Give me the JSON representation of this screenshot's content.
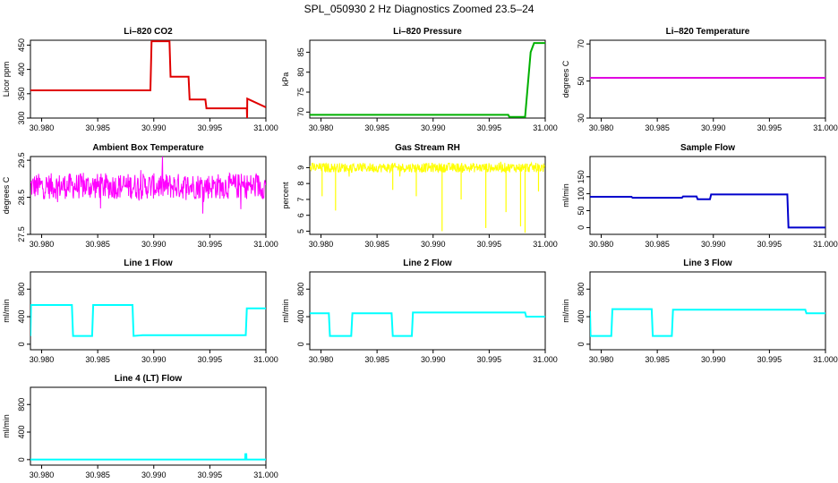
{
  "figure": {
    "title": "SPL_050930  2 Hz Diagnostics Zoomed 23.5–24"
  },
  "chart_data": [
    {
      "type": "line",
      "title": "Li–820 CO2",
      "ylabel": "Licor ppm",
      "color": "#e00000",
      "xlim": [
        30.979,
        31.0
      ],
      "ylim": [
        300,
        460
      ],
      "yticks": [
        300,
        350,
        400,
        450
      ],
      "xticks": [
        "30.980",
        "30.985",
        "30.990",
        "30.995",
        "31.000"
      ],
      "series": [
        {
          "x": [
            30.979,
            30.9897,
            30.9898,
            30.9914,
            30.9915,
            30.9931,
            30.9932,
            30.9946,
            30.9947,
            30.9983,
            30.99832,
            30.99834,
            31.0
          ],
          "y": [
            357,
            357,
            458,
            458,
            385,
            385,
            338,
            338,
            320,
            320,
            300,
            340,
            322
          ]
        }
      ]
    },
    {
      "type": "line",
      "title": "Li–820 Pressure",
      "ylabel": "kPa",
      "color": "#00b000",
      "xlim": [
        30.979,
        31.0
      ],
      "ylim": [
        68.5,
        88
      ],
      "yticks": [
        70,
        75,
        80,
        85
      ],
      "xticks": [
        "30.980",
        "30.985",
        "30.990",
        "30.995",
        "31.000"
      ],
      "series": [
        {
          "x": [
            30.979,
            30.9967,
            30.9968,
            30.9982,
            30.9987,
            30.999,
            31.0
          ],
          "y": [
            69.3,
            69.3,
            68.8,
            68.8,
            85,
            87.3,
            87.3
          ]
        }
      ]
    },
    {
      "type": "line",
      "title": "Li–820 Temperature",
      "ylabel": "degrees C",
      "color": "#e000e0",
      "xlim": [
        30.979,
        31.0
      ],
      "ylim": [
        30,
        72
      ],
      "yticks": [
        30,
        50,
        70
      ],
      "xticks": [
        "30.980",
        "30.985",
        "30.990",
        "30.995",
        "31.000"
      ],
      "series": [
        {
          "x": [
            30.979,
            31.0
          ],
          "y": [
            51.7,
            51.7
          ]
        }
      ]
    },
    {
      "type": "line",
      "title": "Ambient Box Temperature",
      "ylabel": "degrees C",
      "color": "#ff00ff",
      "xlim": [
        30.979,
        31.0
      ],
      "ylim": [
        27.5,
        29.6
      ],
      "yticks": [
        27.5,
        28.5,
        29.5
      ],
      "xticks": [
        "30.980",
        "30.985",
        "30.990",
        "30.995",
        "31.000"
      ],
      "noise": {
        "center": 28.8,
        "amp": 0.35,
        "spikes": 0.25
      }
    },
    {
      "type": "line",
      "title": "Gas Stream RH",
      "ylabel": "percent",
      "color": "#ffff00",
      "xlim": [
        30.979,
        31.0
      ],
      "ylim": [
        4.8,
        9.7
      ],
      "yticks": [
        5,
        6,
        7,
        8,
        9
      ],
      "xticks": [
        "30.980",
        "30.985",
        "30.990",
        "30.995",
        "31.000"
      ],
      "noise": {
        "center": 9.0,
        "amp": 0.3,
        "spikes": 0.1
      },
      "dips": [
        [
          30.9801,
          7.2
        ],
        [
          30.9813,
          6.3
        ],
        [
          30.9864,
          7.6
        ],
        [
          30.9885,
          7.2
        ],
        [
          30.9908,
          5.0
        ],
        [
          30.9925,
          7.0
        ],
        [
          30.9947,
          5.2
        ],
        [
          30.9965,
          6.2
        ],
        [
          30.9978,
          5.3
        ],
        [
          30.9982,
          4.9
        ],
        [
          30.9994,
          7.5
        ]
      ]
    },
    {
      "type": "line",
      "title": "Sample Flow",
      "ylabel": "ml/min",
      "color": "#0000cc",
      "xlim": [
        30.979,
        31.0
      ],
      "ylim": [
        -20,
        210
      ],
      "yticks": [
        0,
        50,
        100,
        150
      ],
      "xticks": [
        "30.980",
        "30.985",
        "30.990",
        "30.995",
        "31.000"
      ],
      "series": [
        {
          "x": [
            30.979,
            30.9827,
            30.9828,
            30.9872,
            30.9873,
            30.9885,
            30.9886,
            30.9897,
            30.9898,
            30.9966,
            30.9967,
            31.0
          ],
          "y": [
            91,
            91,
            88,
            88,
            92,
            92,
            84,
            84,
            98,
            98,
            0,
            0
          ]
        }
      ]
    },
    {
      "type": "line",
      "title": "Line 1 Flow",
      "ylabel": "ml/min",
      "color": "#00ffff",
      "xlim": [
        30.979,
        31.0
      ],
      "ylim": [
        -80,
        1050
      ],
      "yticks": [
        0,
        400,
        800
      ],
      "xticks": [
        "30.980",
        "30.985",
        "30.990",
        "30.995",
        "31.000"
      ],
      "series": [
        {
          "x": [
            30.979,
            30.97905,
            30.9827,
            30.9828,
            30.9845,
            30.9846,
            30.9881,
            30.9882,
            30.989,
            30.9982,
            30.9983,
            31.0
          ],
          "y": [
            120,
            570,
            570,
            120,
            120,
            570,
            570,
            120,
            130,
            130,
            520,
            520
          ]
        }
      ]
    },
    {
      "type": "line",
      "title": "Line 2 Flow",
      "ylabel": "ml/min",
      "color": "#00ffff",
      "xlim": [
        30.979,
        31.0
      ],
      "ylim": [
        -80,
        1050
      ],
      "yticks": [
        0,
        400,
        800
      ],
      "xticks": [
        "30.980",
        "30.985",
        "30.990",
        "30.995",
        "31.000"
      ],
      "series": [
        {
          "x": [
            30.979,
            30.9807,
            30.9808,
            30.9827,
            30.9828,
            30.9863,
            30.9864,
            30.9881,
            30.9882,
            30.9982,
            30.9983,
            31.0
          ],
          "y": [
            450,
            450,
            120,
            120,
            450,
            450,
            120,
            120,
            460,
            460,
            400,
            400
          ]
        }
      ]
    },
    {
      "type": "line",
      "title": "Line 3 Flow",
      "ylabel": "ml/min",
      "color": "#00ffff",
      "xlim": [
        30.979,
        31.0
      ],
      "ylim": [
        -80,
        1050
      ],
      "yticks": [
        0,
        400,
        800
      ],
      "xticks": [
        "30.980",
        "30.985",
        "30.990",
        "30.995",
        "31.000"
      ],
      "series": [
        {
          "x": [
            30.979,
            30.97905,
            30.9809,
            30.981,
            30.9845,
            30.9846,
            30.9863,
            30.9864,
            30.9982,
            30.9983,
            31.0
          ],
          "y": [
            480,
            120,
            120,
            510,
            510,
            120,
            120,
            500,
            500,
            450,
            450
          ]
        }
      ]
    },
    {
      "type": "line",
      "title": "Line 4 (LT) Flow",
      "ylabel": "ml/min",
      "color": "#00ffff",
      "xlim": [
        30.979,
        31.0
      ],
      "ylim": [
        -80,
        1050
      ],
      "yticks": [
        0,
        400,
        800
      ],
      "xticks": [
        "30.980",
        "30.985",
        "30.990",
        "30.995",
        "31.000"
      ],
      "series": [
        {
          "x": [
            30.979,
            30.99815,
            30.99817,
            30.99825,
            30.99827,
            31.0
          ],
          "y": [
            0,
            0,
            80,
            80,
            0,
            0
          ]
        }
      ]
    }
  ]
}
